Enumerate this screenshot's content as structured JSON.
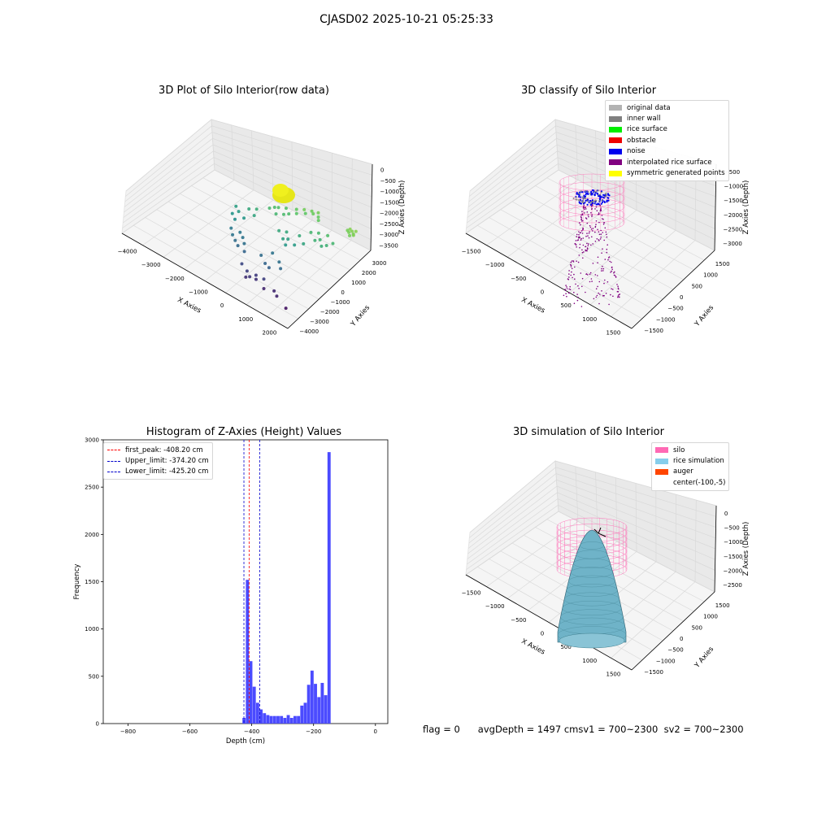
{
  "suptitle": "CJASD02 2025-10-21 05:25:33",
  "colors": {
    "hist_bar": "#4b4bff",
    "peak_line": "#ff0000",
    "limit_line": "#0000cc",
    "pane": "#f2f2f2",
    "grid": "#d9d9d9",
    "silo": "#ff69b4",
    "rice": "#7fbfd0"
  },
  "status": {
    "flag": "flag = 0",
    "avg_depth": "avgDepth = 1497 cm",
    "sv1": "sv1 = 700~2300",
    "sv2": "sv2 = 700~2300"
  },
  "chart_data": [
    {
      "type": "scatter",
      "title": "3D Plot of Silo Interior(row data)",
      "xlabel": "X Axies",
      "ylabel": "Y Axies",
      "zlabel": "Z Axies (Depth)",
      "x_ticks": [
        "−4000",
        "−3000",
        "−2000",
        "−1000",
        "0",
        "1000",
        "2000"
      ],
      "y_ticks": [
        "−4000",
        "−3000",
        "−2000",
        "−1000",
        "0",
        "1000",
        "2000",
        "3000"
      ],
      "z_ticks": [
        "0",
        "−500",
        "−1000",
        "−1500",
        "−2000",
        "−2500",
        "−3000",
        "−3500"
      ],
      "xlim": [
        -4300,
        2100
      ],
      "ylim": [
        -4300,
        3300
      ],
      "zlim": [
        -3700,
        200
      ],
      "colormap": "viridis",
      "points": [
        [
          1400,
          2200,
          -700
        ],
        [
          1500,
          2100,
          -750
        ],
        [
          1300,
          2250,
          -680
        ],
        [
          1450,
          1900,
          -800
        ],
        [
          1550,
          2000,
          -720
        ],
        [
          1350,
          2050,
          -760
        ],
        [
          1500,
          2300,
          -650
        ],
        [
          1250,
          2150,
          -780
        ],
        [
          -300,
          1900,
          -800
        ],
        [
          -100,
          2100,
          -820
        ],
        [
          100,
          2200,
          -780
        ],
        [
          -500,
          1700,
          -900
        ],
        [
          0,
          2000,
          -850
        ],
        [
          200,
          2000,
          -880
        ],
        [
          -200,
          1800,
          -950
        ],
        [
          300,
          1800,
          -900
        ],
        [
          -800,
          1500,
          -1050
        ],
        [
          -1000,
          1300,
          -1100
        ],
        [
          -600,
          1300,
          -1150
        ],
        [
          -400,
          1500,
          -1000
        ],
        [
          -1200,
          1000,
          -1200
        ],
        [
          -900,
          900,
          -1250
        ],
        [
          -700,
          1100,
          -1180
        ],
        [
          -1100,
          1200,
          -1150
        ],
        [
          600,
          1200,
          -1200
        ],
        [
          800,
          900,
          -1300
        ],
        [
          900,
          1300,
          -1100
        ],
        [
          1100,
          800,
          -1350
        ],
        [
          400,
          1000,
          -1250
        ],
        [
          1200,
          1100,
          -1250
        ],
        [
          1000,
          600,
          -1400
        ],
        [
          700,
          700,
          -1350
        ],
        [
          -1500,
          600,
          -1400
        ],
        [
          -1700,
          400,
          -1500
        ],
        [
          -1900,
          0,
          -1700
        ],
        [
          -2000,
          -300,
          -1800
        ],
        [
          -2100,
          200,
          -1650
        ],
        [
          -1800,
          -500,
          -1900
        ],
        [
          -1600,
          -200,
          -1750
        ],
        [
          -1400,
          200,
          -1550
        ],
        [
          -200,
          300,
          -1500
        ],
        [
          200,
          500,
          -1450
        ],
        [
          -100,
          -200,
          -1600
        ],
        [
          300,
          -100,
          -1700
        ],
        [
          0,
          0,
          -1650
        ],
        [
          500,
          200,
          -1550
        ],
        [
          -400,
          100,
          -1500
        ],
        [
          100,
          -400,
          -1750
        ],
        [
          -1700,
          -1000,
          -2200
        ],
        [
          -1500,
          -1300,
          -2300
        ],
        [
          -1300,
          -1500,
          -2400
        ],
        [
          -1100,
          -1700,
          -2450
        ],
        [
          -800,
          -1800,
          -2500
        ],
        [
          -1000,
          -1400,
          -2350
        ],
        [
          -1400,
          -900,
          -2250
        ],
        [
          -1200,
          -1100,
          -2300
        ],
        [
          -300,
          -1500,
          -2400
        ],
        [
          0,
          -1800,
          -2500
        ],
        [
          300,
          -1300,
          -2350
        ],
        [
          -100,
          -1000,
          -2300
        ],
        [
          500,
          -1600,
          -2450
        ],
        [
          200,
          -1900,
          -2550
        ],
        [
          -600,
          -2400,
          -2900
        ],
        [
          -300,
          -2600,
          -3000
        ],
        [
          -100,
          -2800,
          -3100
        ],
        [
          100,
          -2700,
          -3150
        ],
        [
          -200,
          -2900,
          -3200
        ],
        [
          300,
          -2500,
          -3000
        ],
        [
          500,
          -2900,
          -3300
        ],
        [
          0,
          -2500,
          -3050
        ],
        [
          1500,
          -3200,
          -3500
        ],
        [
          1000,
          -2900,
          -3300
        ],
        [
          800,
          -2700,
          -3250
        ]
      ]
    },
    {
      "type": "scatter",
      "title": "3D classify of Silo Interior",
      "xlabel": "X Axies",
      "ylabel": "Y Axies",
      "zlabel": "Z Axies (Depth)",
      "x_ticks": [
        "−1500",
        "−1000",
        "−500",
        "0",
        "500",
        "1000",
        "1500"
      ],
      "y_ticks": [
        "−1500",
        "−1000",
        "−500",
        "0",
        "500",
        "1000",
        "1500"
      ],
      "z_ticks": [
        "−500",
        "−1000",
        "−1500",
        "−2000",
        "−2500",
        "−3000"
      ],
      "legend": [
        {
          "label": "original data",
          "color": "#b3b3b3"
        },
        {
          "label": "inner wall",
          "color": "#808080"
        },
        {
          "label": "rice surface",
          "color": "#00ee00"
        },
        {
          "label": "obstacle",
          "color": "#ee0000"
        },
        {
          "label": "noise",
          "color": "#0000ee"
        },
        {
          "label": "interpolated rice surface",
          "color": "#800080"
        },
        {
          "label": "symmetric generated points",
          "color": "#ffff00"
        }
      ]
    },
    {
      "type": "bar",
      "title": "Histogram of Z-Axies (Height) Values",
      "xlabel": "Depth (cm)",
      "ylabel": "Frequency",
      "xlim": [
        -880,
        40
      ],
      "ylim": [
        0,
        3000
      ],
      "x_ticks": [
        -800,
        -600,
        -400,
        -200,
        0
      ],
      "y_ticks": [
        0,
        500,
        1000,
        1500,
        2000,
        2500,
        3000
      ],
      "bin_width": 11,
      "bins": [
        {
          "x": -430,
          "v": 60
        },
        {
          "x": -419,
          "v": 1520
        },
        {
          "x": -408,
          "v": 660
        },
        {
          "x": -397,
          "v": 390
        },
        {
          "x": -386,
          "v": 220
        },
        {
          "x": -375,
          "v": 150
        },
        {
          "x": -364,
          "v": 110
        },
        {
          "x": -353,
          "v": 90
        },
        {
          "x": -342,
          "v": 80
        },
        {
          "x": -331,
          "v": 80
        },
        {
          "x": -320,
          "v": 80
        },
        {
          "x": -309,
          "v": 80
        },
        {
          "x": -298,
          "v": 60
        },
        {
          "x": -287,
          "v": 90
        },
        {
          "x": -276,
          "v": 60
        },
        {
          "x": -265,
          "v": 80
        },
        {
          "x": -254,
          "v": 80
        },
        {
          "x": -243,
          "v": 190
        },
        {
          "x": -232,
          "v": 220
        },
        {
          "x": -221,
          "v": 410
        },
        {
          "x": -210,
          "v": 560
        },
        {
          "x": -199,
          "v": 420
        },
        {
          "x": -188,
          "v": 280
        },
        {
          "x": -177,
          "v": 430
        },
        {
          "x": -166,
          "v": 300
        },
        {
          "x": -155,
          "v": 2870
        }
      ],
      "vlines": [
        {
          "label": "first_peak: -408.20 cm",
          "x": -408.2,
          "color": "#ff0000"
        },
        {
          "label": "Upper_limit: -374.20 cm",
          "x": -374.2,
          "color": "#0000cc"
        },
        {
          "label": "Lower_limit: -425.20 cm",
          "x": -425.2,
          "color": "#0000cc"
        }
      ]
    },
    {
      "type": "area",
      "title": "3D simulation of Silo Interior",
      "xlabel": "X Axies",
      "ylabel": "Y Axies",
      "zlabel": "Z Axies (Depth)",
      "x_ticks": [
        "−1500",
        "−1000",
        "−500",
        "0",
        "500",
        "1000",
        "1500"
      ],
      "y_ticks": [
        "−1500",
        "−1000",
        "−500",
        "0",
        "500",
        "1000",
        "1500"
      ],
      "z_ticks": [
        "0",
        "−500",
        "−1000",
        "−1500",
        "−2000",
        "−2500"
      ],
      "legend": [
        {
          "label": "silo",
          "color": "#ff69b4"
        },
        {
          "label": "rice simulation",
          "color": "#87ceeb"
        },
        {
          "label": "auger",
          "color": "#ff4500"
        },
        {
          "label": "center(-100,-5)",
          "color": ""
        }
      ]
    }
  ]
}
